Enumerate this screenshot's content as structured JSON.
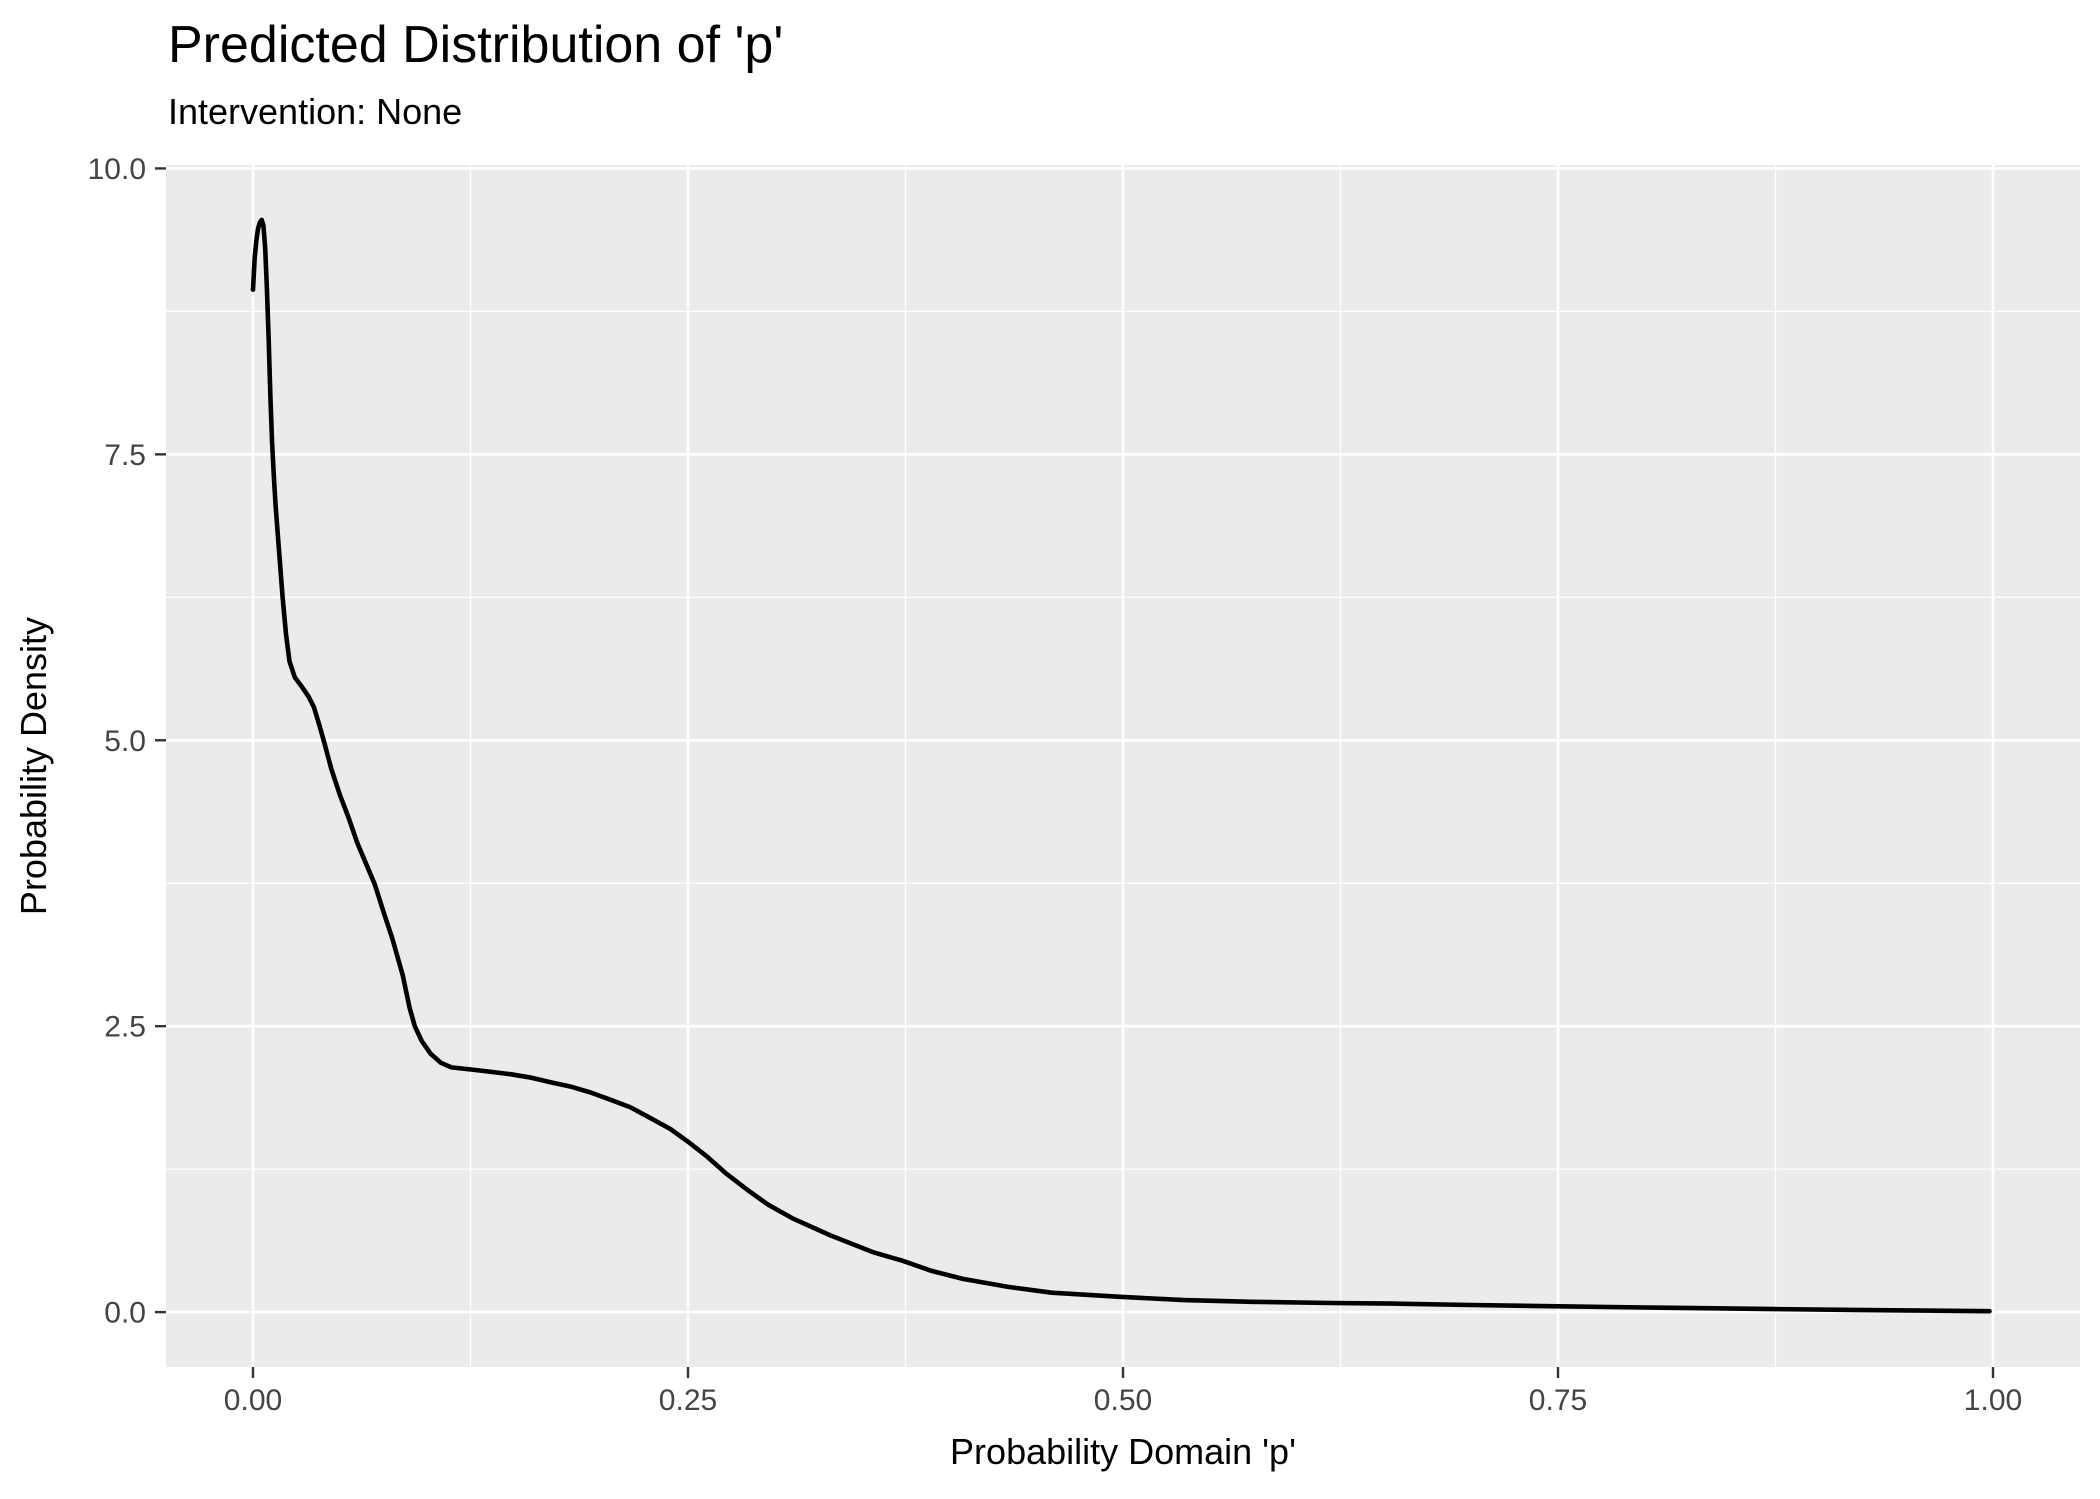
{
  "chart_data": {
    "type": "line",
    "subtype": "density-curve",
    "title": "Predicted Distribution of 'p'",
    "subtitle": "Intervention: None",
    "xlabel": "Probability Domain 'p'",
    "ylabel": "Probability Density",
    "legend": "none",
    "grid": {
      "major": true,
      "minor": true
    },
    "xlim": [
      -0.05,
      1.05
    ],
    "ylim": [
      -0.48,
      10.03
    ],
    "x_ticks": [
      {
        "v": 0.0,
        "label": "0.00"
      },
      {
        "v": 0.25,
        "label": "0.25"
      },
      {
        "v": 0.5,
        "label": "0.50"
      },
      {
        "v": 0.75,
        "label": "0.75"
      },
      {
        "v": 1.0,
        "label": "1.00"
      }
    ],
    "y_ticks": [
      {
        "v": 0.0,
        "label": "0.0"
      },
      {
        "v": 2.5,
        "label": "2.5"
      },
      {
        "v": 5.0,
        "label": "5.0"
      },
      {
        "v": 7.5,
        "label": "7.5"
      },
      {
        "v": 10.0,
        "label": "10.0"
      }
    ],
    "x_minor_gridlines": [
      0.125,
      0.375,
      0.625,
      0.875
    ],
    "y_minor_gridlines": [
      1.25,
      3.75,
      6.25,
      8.75
    ],
    "series": [
      {
        "name": "density",
        "points": [
          [
            0.0,
            8.94
          ],
          [
            0.001,
            9.22
          ],
          [
            0.002,
            9.38
          ],
          [
            0.003,
            9.48
          ],
          [
            0.004,
            9.53
          ],
          [
            0.005,
            9.55
          ],
          [
            0.006,
            9.5
          ],
          [
            0.007,
            9.3
          ],
          [
            0.008,
            8.95
          ],
          [
            0.009,
            8.5
          ],
          [
            0.01,
            8.0
          ],
          [
            0.011,
            7.6
          ],
          [
            0.012,
            7.3
          ],
          [
            0.013,
            7.05
          ],
          [
            0.015,
            6.65
          ],
          [
            0.017,
            6.25
          ],
          [
            0.019,
            5.92
          ],
          [
            0.021,
            5.69
          ],
          [
            0.024,
            5.55
          ],
          [
            0.028,
            5.47
          ],
          [
            0.032,
            5.38
          ],
          [
            0.035,
            5.29
          ],
          [
            0.038,
            5.14
          ],
          [
            0.041,
            4.98
          ],
          [
            0.045,
            4.75
          ],
          [
            0.05,
            4.52
          ],
          [
            0.055,
            4.32
          ],
          [
            0.06,
            4.1
          ],
          [
            0.065,
            3.92
          ],
          [
            0.07,
            3.74
          ],
          [
            0.075,
            3.5
          ],
          [
            0.08,
            3.27
          ],
          [
            0.086,
            2.95
          ],
          [
            0.09,
            2.66
          ],
          [
            0.093,
            2.5
          ],
          [
            0.097,
            2.37
          ],
          [
            0.102,
            2.26
          ],
          [
            0.108,
            2.18
          ],
          [
            0.114,
            2.14
          ],
          [
            0.12,
            2.13
          ],
          [
            0.126,
            2.12
          ],
          [
            0.137,
            2.1
          ],
          [
            0.148,
            2.08
          ],
          [
            0.16,
            2.05
          ],
          [
            0.171,
            2.01
          ],
          [
            0.183,
            1.97
          ],
          [
            0.194,
            1.92
          ],
          [
            0.205,
            1.86
          ],
          [
            0.217,
            1.79
          ],
          [
            0.228,
            1.7
          ],
          [
            0.24,
            1.6
          ],
          [
            0.25,
            1.49
          ],
          [
            0.261,
            1.36
          ],
          [
            0.272,
            1.21
          ],
          [
            0.284,
            1.07
          ],
          [
            0.296,
            0.94
          ],
          [
            0.31,
            0.82
          ],
          [
            0.332,
            0.67
          ],
          [
            0.357,
            0.52
          ],
          [
            0.373,
            0.45
          ],
          [
            0.39,
            0.36
          ],
          [
            0.408,
            0.29
          ],
          [
            0.434,
            0.22
          ],
          [
            0.459,
            0.17
          ],
          [
            0.497,
            0.135
          ],
          [
            0.535,
            0.105
          ],
          [
            0.574,
            0.09
          ],
          [
            0.62,
            0.08
          ],
          [
            0.655,
            0.074
          ],
          [
            0.7,
            0.062
          ],
          [
            0.745,
            0.052
          ],
          [
            0.8,
            0.04
          ],
          [
            0.84,
            0.033
          ],
          [
            0.875,
            0.026
          ],
          [
            0.92,
            0.019
          ],
          [
            0.96,
            0.013
          ],
          [
            0.998,
            0.008
          ]
        ]
      }
    ]
  },
  "style": {
    "figure_background": "#FFFFFF",
    "panel_background": "#EBEBEB",
    "gridline_color": "#FFFFFF",
    "curve_color": "#000000",
    "tick_mark_color": "#333333",
    "axis_text_color": "#444444",
    "title_color": "#000000",
    "axis_title_color": "#000000"
  }
}
